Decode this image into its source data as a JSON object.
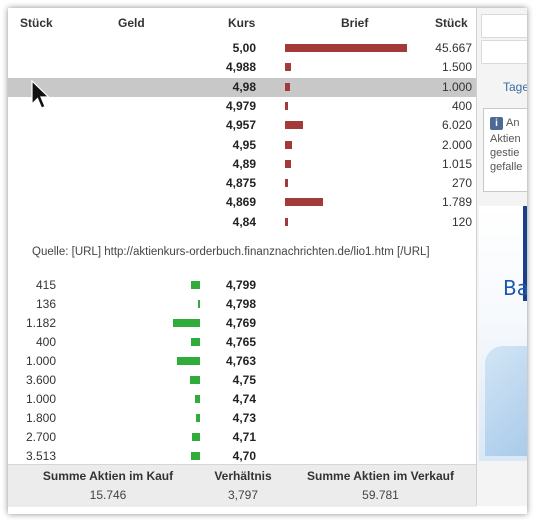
{
  "headers": {
    "stueck_left": "Stück",
    "geld": "Geld",
    "kurs": "Kurs",
    "brief": "Brief",
    "stueck_right": "Stück"
  },
  "ask_rows": [
    {
      "kurs": "5,00",
      "stueck": "45.667",
      "bar": 1.0
    },
    {
      "kurs": "4,988",
      "stueck": "1.500",
      "bar": 0.05
    },
    {
      "kurs": "4,98",
      "stueck": "1.000",
      "bar": 0.04,
      "selected": true
    },
    {
      "kurs": "4,979",
      "stueck": "400",
      "bar": 0.02
    },
    {
      "kurs": "4,957",
      "stueck": "6.020",
      "bar": 0.15
    },
    {
      "kurs": "4,95",
      "stueck": "2.000",
      "bar": 0.06
    },
    {
      "kurs": "4,89",
      "stueck": "1.015",
      "bar": 0.05
    },
    {
      "kurs": "4,875",
      "stueck": "270",
      "bar": 0.02
    },
    {
      "kurs": "4,869",
      "stueck": "1.789",
      "bar": 0.31
    },
    {
      "kurs": "4,84",
      "stueck": "120",
      "bar": 0.01
    }
  ],
  "quelle": "Quelle: [URL] http://aktienkurs-orderbuch.finanznachrichten.de/lio1.htm [/URL]",
  "bid_rows": [
    {
      "stueck": "415",
      "kurs": "4,799",
      "bar": 0.35
    },
    {
      "stueck": "136",
      "kurs": "4,798",
      "bar": 0.08
    },
    {
      "stueck": "1.182",
      "kurs": "4,769",
      "bar": 1.0
    },
    {
      "stueck": "400",
      "kurs": "4,765",
      "bar": 0.34
    },
    {
      "stueck": "1.000",
      "kurs": "4,763",
      "bar": 0.85
    },
    {
      "stueck": "3.600",
      "kurs": "4,75",
      "bar": 0.38
    },
    {
      "stueck": "1.000",
      "kurs": "4,74",
      "bar": 0.2
    },
    {
      "stueck": "1.800",
      "kurs": "4,73",
      "bar": 0.15
    },
    {
      "stueck": "2.700",
      "kurs": "4,71",
      "bar": 0.3
    },
    {
      "stueck": "3.513",
      "kurs": "4,70",
      "bar": 0.32
    }
  ],
  "footer": {
    "kauf_label": "Summe Aktien im Kauf",
    "verh_label": "Verhältnis",
    "verkauf_label": "Summe Aktien im Verkauf",
    "kauf_value": "15.746",
    "verh_value": "3,797",
    "verkauf_value": "59.781"
  },
  "side": {
    "tage_label": "Tage",
    "info_line1": "An",
    "info_line2": "Aktien",
    "info_line3": "gestie",
    "info_line4": "gefalle",
    "ad_text": "Ba"
  },
  "colors": {
    "ask_bar": "#a33a3a",
    "bid_bar": "#2fac3a",
    "selected_row": "#c8c8c8"
  }
}
